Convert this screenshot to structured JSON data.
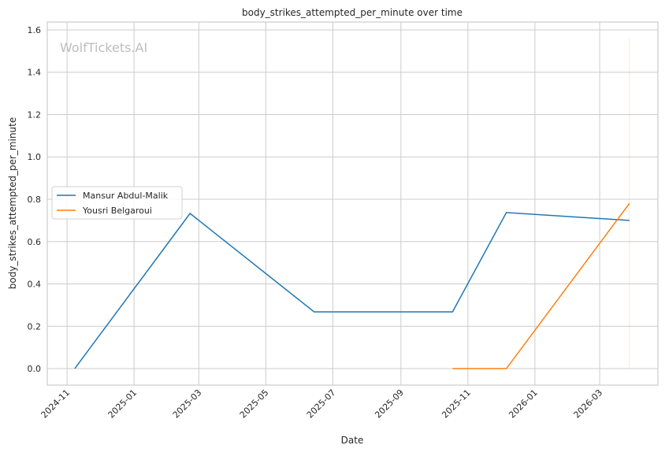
{
  "chart_data": {
    "type": "line",
    "title": "body_strikes_attempted_per_minute over time",
    "xlabel": "Date",
    "ylabel": "body_strikes_attempted_per_minute",
    "watermark": "WolfTickets.AI",
    "xlim": [
      "2024-10-14",
      "2026-04-23"
    ],
    "ylim": [
      -0.078,
      1.637
    ],
    "x_ticks": [
      "2024-11",
      "2025-01",
      "2025-03",
      "2025-05",
      "2025-07",
      "2025-09",
      "2025-11",
      "2026-01",
      "2026-03"
    ],
    "y_ticks": [
      "0.0",
      "0.2",
      "0.4",
      "0.6",
      "0.8",
      "1.0",
      "1.2",
      "1.4",
      "1.6"
    ],
    "grid": true,
    "legend_position": "center-left",
    "series": [
      {
        "name": "Mansur Abdul-Malik",
        "color": "#1f77b4",
        "x": [
          "2024-11-08",
          "2025-02-21",
          "2025-06-14",
          "2025-10-18",
          "2025-12-06",
          "2026-03-28"
        ],
        "y": [
          0.0,
          0.733,
          0.268,
          0.268,
          0.737,
          0.7
        ]
      },
      {
        "name": "Yousri Belgaroui",
        "color": "#ff7f0e",
        "x": [
          "2025-10-18",
          "2025-12-06",
          "2026-03-28"
        ],
        "y": [
          0.0,
          0.0,
          0.78
        ]
      }
    ],
    "marker_line": {
      "x": "2026-03-28",
      "y": [
        0.0,
        1.56
      ],
      "color": "#ff7f0e"
    }
  }
}
